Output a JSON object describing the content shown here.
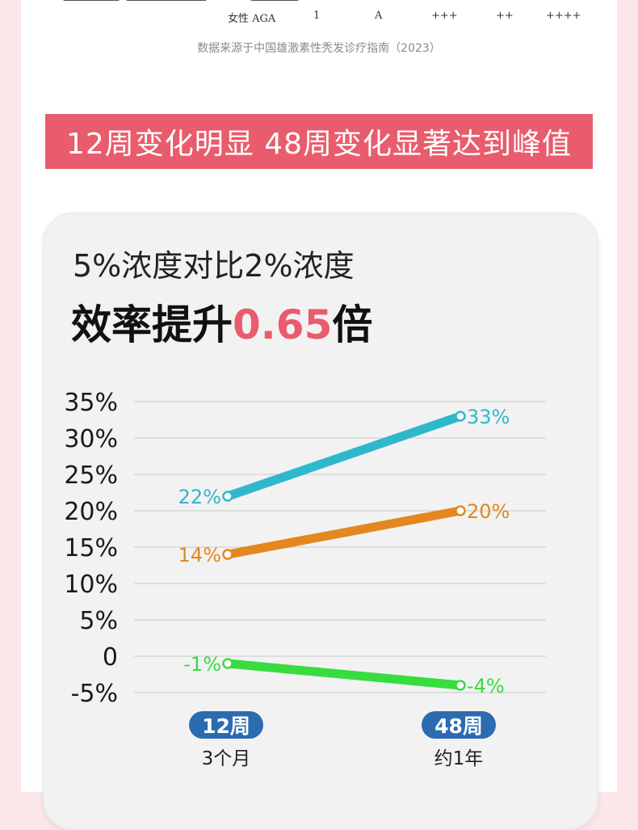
{
  "table_fragment": {
    "row_label": "女性 AGA",
    "cells": [
      "1",
      "A",
      "+++",
      "++",
      "++++"
    ]
  },
  "source_note": "数据来源于中国雄激素性秃发诊疗指南（2023）",
  "banner": {
    "text": "12周变化明显  48周变化显著达到峰值"
  },
  "card": {
    "subtitle": "5%浓度对比2%浓度",
    "headline_prefix": "效率提升",
    "headline_value": "0.65",
    "headline_suffix": "倍"
  },
  "colors": {
    "banner": "#e95c6d",
    "accent": "#e95c6d",
    "series_teal": "#2fb8cc",
    "series_orange": "#e4871e",
    "series_green": "#38dc3f",
    "badge": "#2b6cb0"
  },
  "chart_data": {
    "type": "line",
    "x": [
      "12周",
      "48周"
    ],
    "x_sublabels": [
      "3个月",
      "约1年"
    ],
    "ylim": [
      -5,
      35
    ],
    "yticks": [
      "35%",
      "30%",
      "25%",
      "20%",
      "15%",
      "10%",
      "5%",
      "0",
      "-5%"
    ],
    "ytick_values": [
      35,
      30,
      25,
      20,
      15,
      10,
      5,
      0,
      -5
    ],
    "grid": true,
    "series": [
      {
        "values": [
          22,
          33
        ],
        "labels": [
          "22%",
          "33%"
        ],
        "color": "#2fb8cc"
      },
      {
        "values": [
          14,
          20
        ],
        "labels": [
          "14%",
          "20%"
        ],
        "color": "#e4871e"
      },
      {
        "values": [
          -1,
          -4
        ],
        "labels": [
          "-1%",
          "-4%"
        ],
        "color": "#38dc3f"
      }
    ]
  }
}
